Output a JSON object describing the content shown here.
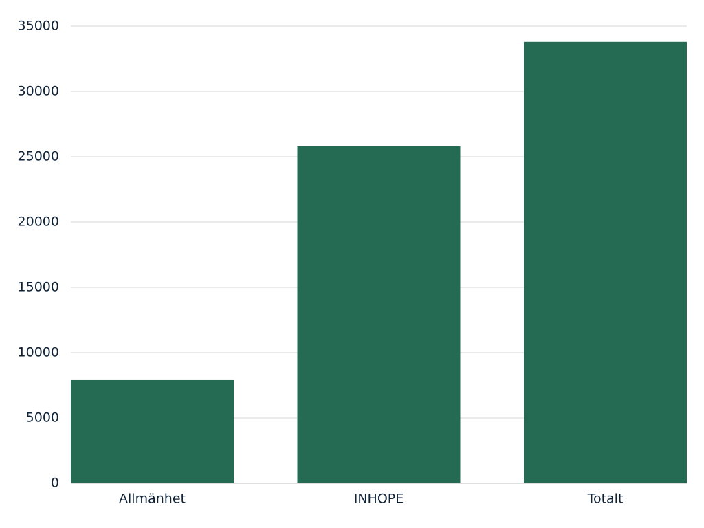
{
  "chart_data": {
    "type": "bar",
    "categories": [
      "Allmänhet",
      "INHOPE",
      "Totalt"
    ],
    "values": [
      7950,
      25800,
      33800
    ],
    "color": "#256b53",
    "ylim": [
      0,
      35000
    ],
    "yticks": [
      0,
      5000,
      10000,
      15000,
      20000,
      25000,
      30000,
      35000
    ],
    "grid": true
  }
}
